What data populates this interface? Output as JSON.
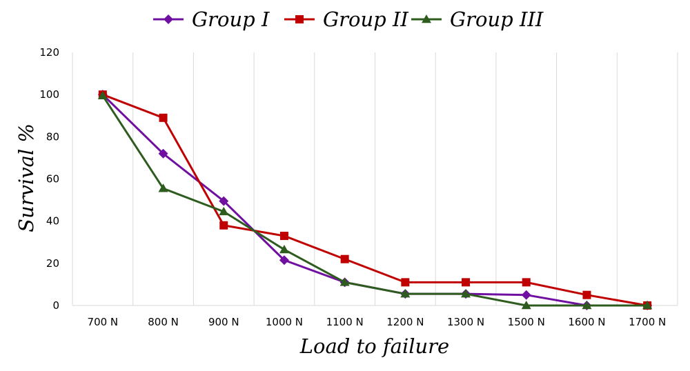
{
  "chart_data": {
    "type": "line",
    "title": "",
    "xlabel": "Load to failure",
    "ylabel": "Survival %",
    "categories": [
      "700 N",
      "800 N",
      "900 N",
      "1000 N",
      "1100 N",
      "1200 N",
      "1300 N",
      "1500 N",
      "1600 N",
      "1700 N"
    ],
    "ylim": [
      0,
      120
    ],
    "yticks": [
      0,
      20,
      40,
      60,
      80,
      100,
      120
    ],
    "grid": "vertical",
    "legend": "top",
    "series": [
      {
        "name": "Group I",
        "color": "#7010a0",
        "marker": "diamond",
        "values": [
          100,
          72,
          49.5,
          21.5,
          11,
          5.5,
          5.5,
          5,
          0,
          0
        ]
      },
      {
        "name": "Group II",
        "color": "#c00000",
        "marker": "square",
        "values": [
          100,
          89,
          38,
          33,
          22,
          11,
          11,
          11,
          5,
          0
        ]
      },
      {
        "name": "Group III",
        "color": "#2e5c1e",
        "marker": "triangle",
        "values": [
          99.5,
          55.5,
          44.5,
          26.5,
          11,
          5.5,
          5.5,
          0,
          0,
          0
        ]
      }
    ]
  }
}
